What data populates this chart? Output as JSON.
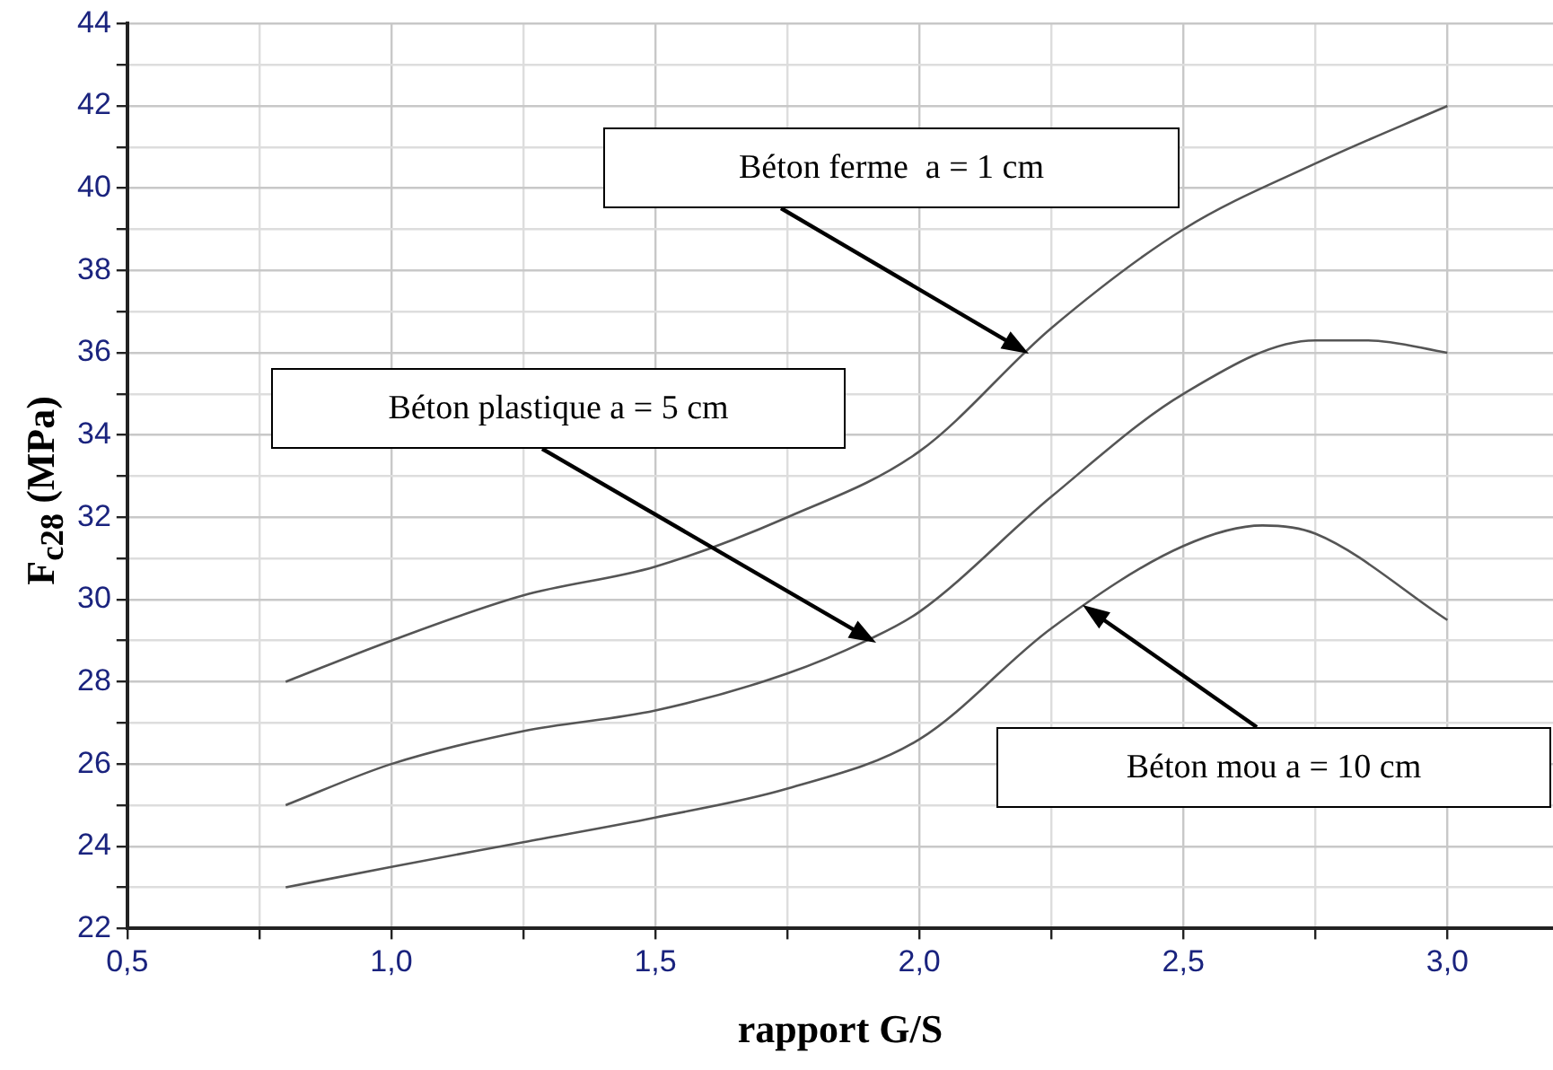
{
  "chart_data": {
    "type": "line",
    "xlabel": "rapport G/S",
    "ylabel": "F$_{c28}$ (MPa)",
    "xlim": [
      0.5,
      3.2
    ],
    "xticks": [
      {
        "value": 0.5,
        "label": "0,5"
      },
      {
        "value": 0.75,
        "label": null
      },
      {
        "value": 1.0,
        "label": "1,0"
      },
      {
        "value": 1.25,
        "label": null
      },
      {
        "value": 1.5,
        "label": "1,5"
      },
      {
        "value": 1.75,
        "label": null
      },
      {
        "value": 2.0,
        "label": "2,0"
      },
      {
        "value": 2.25,
        "label": null
      },
      {
        "value": 2.5,
        "label": "2,5"
      },
      {
        "value": 2.75,
        "label": null
      },
      {
        "value": 3.0,
        "label": "3,0"
      }
    ],
    "ylim": [
      22,
      44
    ],
    "yticks": [
      22,
      {
        "value": 23,
        "label": null
      },
      24,
      {
        "value": 25,
        "label": null
      },
      26,
      {
        "value": 27,
        "label": null
      },
      28,
      {
        "value": 29,
        "label": null
      },
      30,
      {
        "value": 31,
        "label": null
      },
      32,
      {
        "value": 33,
        "label": null
      },
      34,
      {
        "value": 35,
        "label": null
      },
      36,
      {
        "value": 37,
        "label": null
      },
      38,
      {
        "value": 39,
        "label": null
      },
      40,
      {
        "value": 41,
        "label": null
      },
      42,
      {
        "value": 43,
        "label": null
      },
      44
    ],
    "grid": true,
    "legend": false,
    "marker": "none",
    "line_style": "solid",
    "series": [
      {
        "color": "#555555",
        "x": [
          0.8,
          1.0,
          1.25,
          1.5,
          1.75,
          2.0,
          2.25,
          2.5,
          2.75,
          3.0
        ],
        "values": [
          28,
          29,
          30.1,
          30.8,
          32,
          33.6,
          36.6,
          39,
          40.6,
          42
        ]
      },
      {
        "color": "#555555",
        "x": [
          0.8,
          1.0,
          1.25,
          1.5,
          1.75,
          1.9,
          2.0,
          2.25,
          2.5,
          2.75,
          2.85,
          3.0
        ],
        "values": [
          25,
          26,
          26.8,
          27.3,
          28.2,
          29,
          29.7,
          32.5,
          35,
          36.3,
          36.3,
          36
        ]
      },
      {
        "color": "#555555",
        "x": [
          0.8,
          1.0,
          1.25,
          1.5,
          1.75,
          2.0,
          2.25,
          2.5,
          2.65,
          2.75,
          3.0
        ],
        "values": [
          23,
          23.5,
          24.1,
          24.7,
          25.4,
          26.6,
          29.3,
          31.3,
          31.8,
          31.6,
          29.5
        ]
      }
    ],
    "annotations": [
      "Béton ferme  a = 1 cm",
      "Béton plastique a = 5 cm",
      "Béton mou a = 10 cm"
    ]
  }
}
